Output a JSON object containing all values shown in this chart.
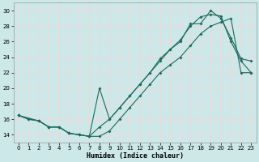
{
  "xlabel": "Humidex (Indice chaleur)",
  "xlim": [
    -0.5,
    23.5
  ],
  "ylim": [
    13.0,
    31.0
  ],
  "xticks": [
    0,
    1,
    2,
    3,
    4,
    5,
    6,
    7,
    8,
    9,
    10,
    11,
    12,
    13,
    14,
    15,
    16,
    17,
    18,
    19,
    20,
    21,
    22,
    23
  ],
  "yticks": [
    14,
    16,
    18,
    20,
    22,
    24,
    26,
    28,
    30
  ],
  "bg_color": "#cce8e8",
  "grid_color": "#f0d8d8",
  "line_color": "#1a6b5e",
  "line1_x": [
    0,
    1,
    2,
    3,
    4,
    5,
    6,
    7,
    8,
    9,
    10,
    11,
    12,
    13,
    14,
    15,
    16,
    17,
    18,
    19,
    20,
    21,
    22,
    23
  ],
  "line1_y": [
    16.5,
    16.0,
    15.8,
    15.0,
    15.0,
    14.2,
    14.0,
    13.8,
    15.0,
    16.0,
    17.5,
    19.0,
    20.5,
    22.0,
    23.5,
    25.0,
    26.2,
    28.0,
    29.2,
    29.5,
    29.3,
    26.0,
    23.5,
    22.0
  ],
  "line2_x": [
    0,
    2,
    3,
    4,
    5,
    6,
    7,
    8,
    9,
    10,
    11,
    12,
    13,
    14,
    15,
    16,
    17,
    18,
    19,
    20,
    21,
    22,
    23
  ],
  "line2_y": [
    16.5,
    15.8,
    15.0,
    15.0,
    14.2,
    14.0,
    13.8,
    20.0,
    16.0,
    17.5,
    19.0,
    20.5,
    22.0,
    23.8,
    25.0,
    26.0,
    28.3,
    28.3,
    30.0,
    29.0,
    26.5,
    23.8,
    23.5
  ],
  "line3_x": [
    0,
    1,
    2,
    3,
    4,
    5,
    6,
    7,
    8,
    9,
    10,
    11,
    12,
    13,
    14,
    15,
    16,
    17,
    18,
    19,
    20,
    21,
    22,
    23
  ],
  "line3_y": [
    16.5,
    16.0,
    15.8,
    15.0,
    15.0,
    14.2,
    14.0,
    13.8,
    13.8,
    14.5,
    16.0,
    17.5,
    19.0,
    20.5,
    22.0,
    23.0,
    24.0,
    25.5,
    27.0,
    28.0,
    28.5,
    29.0,
    22.0,
    22.0
  ]
}
